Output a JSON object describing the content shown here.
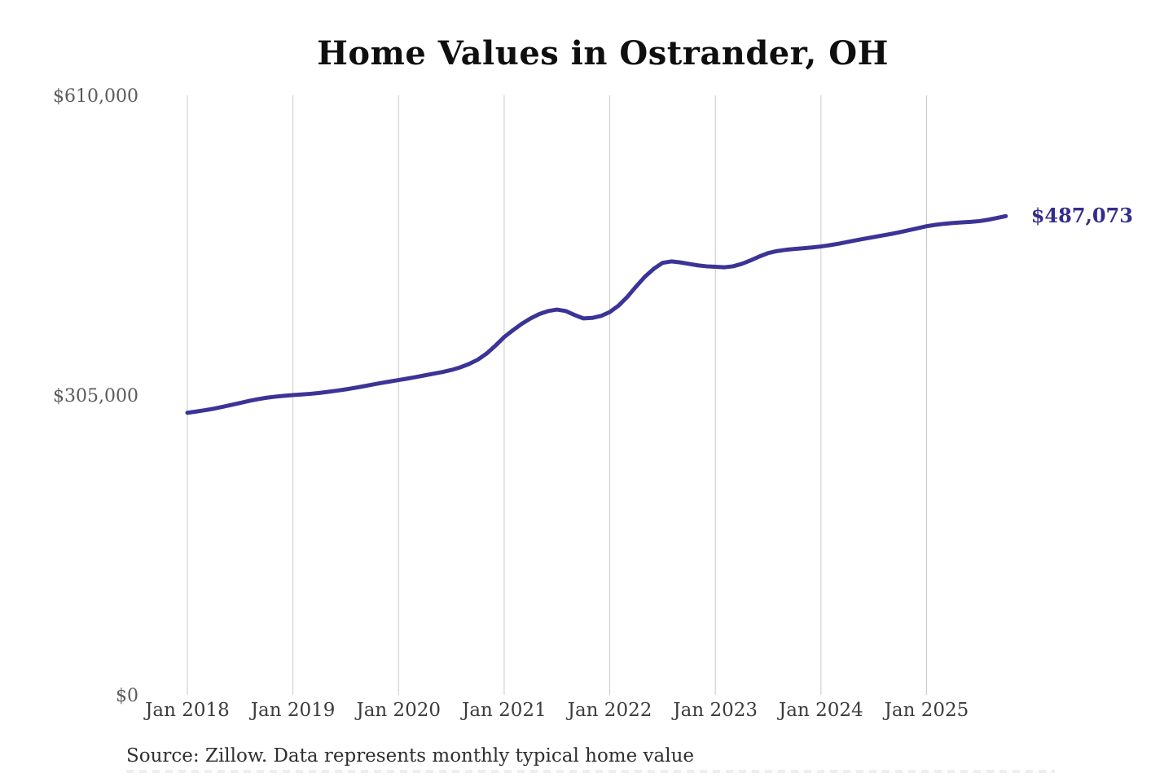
{
  "page": {
    "background": "#ffffff"
  },
  "chart": {
    "title": "Home Values in Ostrander, OH",
    "end_label": "$487,073",
    "source_note": "Source: Zillow. Data represents monthly typical home value"
  },
  "chart_data": {
    "type": "line",
    "title": "Home Values in Ostrander, OH",
    "xlabel": "",
    "ylabel": "",
    "ylim": [
      0,
      610000
    ],
    "grid": "vertical-only",
    "legend": "none",
    "line_color": "#3b3496",
    "grid_color": "#c9c9c9",
    "end_label": "$487,073",
    "x_tick_labels": [
      "Jan 2018",
      "Jan 2019",
      "Jan 2020",
      "Jan 2021",
      "Jan 2022",
      "Jan 2023",
      "Jan 2024",
      "Jan 2025"
    ],
    "y_ticks": [
      {
        "label": "$0",
        "value": 0
      },
      {
        "label": "$305,000",
        "value": 305000
      },
      {
        "label": "$610,000",
        "value": 610000
      }
    ],
    "series": [
      {
        "name": "Monthly typical home value",
        "interval": "monthly",
        "start_month": "Jan 2018",
        "end_month": "Oct 2025",
        "values": [
          287000,
          288200,
          289600,
          291200,
          293000,
          295000,
          297000,
          299000,
          300800,
          302300,
          303400,
          304300,
          305000,
          305600,
          306300,
          307200,
          308300,
          309500,
          310800,
          312300,
          313900,
          315600,
          317300,
          318800,
          320300,
          321800,
          323400,
          325100,
          326800,
          328500,
          330500,
          333200,
          336600,
          341000,
          347200,
          355200,
          364000,
          371000,
          377500,
          383000,
          387500,
          390500,
          392000,
          390500,
          386500,
          383000,
          383500,
          385500,
          389500,
          396000,
          405000,
          415500,
          425500,
          433500,
          439500,
          441000,
          440000,
          438500,
          437000,
          436000,
          435500,
          435000,
          436000,
          438500,
          442000,
          446000,
          449500,
          451500,
          452800,
          453700,
          454400,
          455200,
          456200,
          457500,
          459000,
          460800,
          462500,
          464200,
          465800,
          467400,
          469000,
          470800,
          472800,
          474800,
          476800,
          478200,
          479300,
          480100,
          480700,
          481200,
          482000,
          483400,
          485200,
          487073
        ]
      }
    ]
  }
}
